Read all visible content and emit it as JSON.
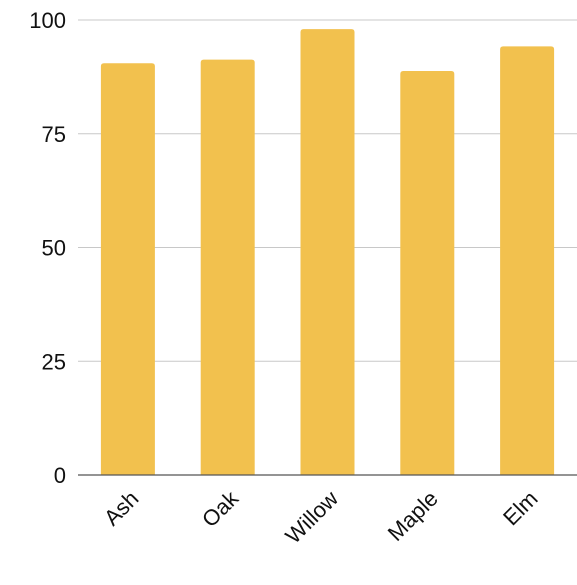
{
  "chart_data": {
    "type": "bar",
    "title": "",
    "xlabel": "",
    "ylabel": "",
    "categories": [
      "Ash",
      "Oak",
      "Willow",
      "Maple",
      "Elm"
    ],
    "values": [
      90.5,
      91.3,
      98.0,
      88.8,
      94.2
    ],
    "ylim": [
      0,
      100
    ],
    "yticks": [
      "0",
      "25",
      "50",
      "75",
      "100"
    ],
    "grid": true,
    "legend": "none",
    "bar_color": "#F2C14E",
    "grid_color": "#C8C8C8",
    "axis_color": "#555555"
  }
}
